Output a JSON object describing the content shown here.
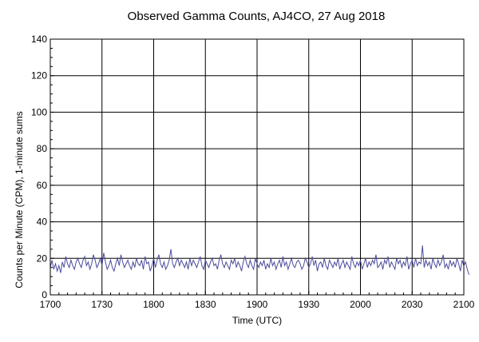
{
  "chart_data": {
    "type": "line",
    "title": "Observed Gamma Counts, AJ4CO, 27 Aug 2018",
    "xlabel": "Time (UTC)",
    "ylabel": "Counts per Minute (CPM), 1-minute sums",
    "x_ticks": [
      "1700",
      "1730",
      "1800",
      "1830",
      "1900",
      "1930",
      "2000",
      "2030",
      "2100"
    ],
    "x_range_minutes": [
      0,
      240
    ],
    "y_ticks": [
      0,
      20,
      40,
      60,
      80,
      100,
      120,
      140
    ],
    "ylim": [
      0,
      140
    ],
    "grid": true,
    "line_color": "#4b4b9c",
    "series": [
      {
        "name": "",
        "x_start": "1700",
        "x_step_minutes": 1,
        "values": [
          15,
          19,
          14,
          17,
          13,
          16,
          12,
          18,
          15,
          21,
          17,
          15,
          19,
          16,
          14,
          18,
          20,
          17,
          15,
          19,
          21,
          16,
          18,
          14,
          17,
          22,
          19,
          15,
          17,
          20,
          16,
          23,
          18,
          14,
          16,
          19,
          15,
          13,
          17,
          20,
          16,
          22,
          18,
          15,
          17,
          19,
          16,
          14,
          18,
          15,
          20,
          17,
          16,
          19,
          14,
          21,
          17,
          18,
          13,
          16,
          20,
          15,
          19,
          22,
          17,
          15,
          18,
          14,
          16,
          19,
          25,
          17,
          15,
          18,
          20,
          16,
          19,
          17,
          15,
          18,
          14,
          20,
          16,
          19,
          17,
          15,
          18,
          21,
          16,
          14,
          19,
          17,
          15,
          18,
          20,
          16,
          17,
          14,
          19,
          22,
          17,
          15,
          18,
          16,
          14,
          19,
          17,
          20,
          15,
          18,
          16,
          13,
          18,
          21,
          17,
          15,
          19,
          16,
          14,
          20,
          17,
          15,
          18,
          16,
          19,
          14,
          17,
          15,
          20,
          16,
          18,
          14,
          17,
          19,
          15,
          21,
          16,
          18,
          14,
          17,
          20,
          16,
          15,
          18,
          19,
          17,
          14,
          16,
          20,
          18,
          15,
          17,
          21,
          16,
          19,
          13,
          17,
          18,
          15,
          20,
          16,
          14,
          19,
          17,
          15,
          18,
          16,
          20,
          14,
          17,
          19,
          15,
          18,
          16,
          14,
          21,
          17,
          15,
          18,
          16,
          19,
          14,
          17,
          20,
          15,
          18,
          16,
          19,
          17,
          22,
          15,
          16,
          18,
          14,
          19,
          17,
          21,
          15,
          18,
          16,
          14,
          20,
          17,
          19,
          15,
          18,
          16,
          21,
          14,
          17,
          19,
          15,
          20,
          16,
          18,
          17,
          27,
          15,
          19,
          16,
          18,
          14,
          20,
          17,
          15,
          19,
          16,
          18,
          22,
          15,
          17,
          14,
          19,
          16,
          18,
          15,
          20,
          17,
          13,
          19,
          16,
          18,
          14,
          11
        ]
      }
    ]
  }
}
